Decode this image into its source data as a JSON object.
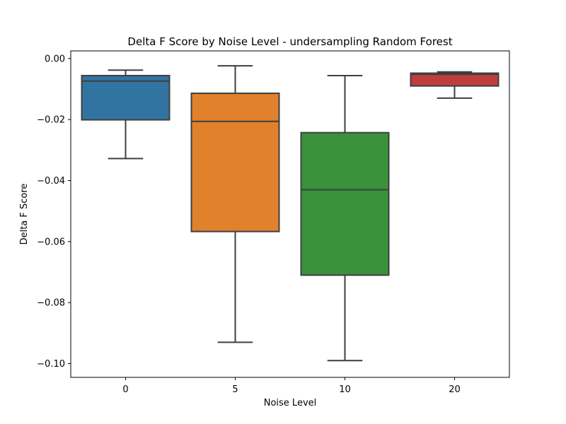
{
  "chart_data": {
    "type": "box",
    "title": "Delta F Score by Noise Level - undersampling Random Forest",
    "xlabel": "Noise Level",
    "ylabel": "Delta F Score",
    "categories": [
      "0",
      "5",
      "10",
      "20"
    ],
    "ylim": [
      -0.1045,
      0.0025
    ],
    "yticks": [
      0.0,
      -0.02,
      -0.04,
      -0.06,
      -0.08,
      -0.1
    ],
    "ytick_labels": [
      "0.00",
      "−0.02",
      "−0.04",
      "−0.06",
      "−0.08",
      "−0.10"
    ],
    "grid": false,
    "boxes": [
      {
        "category": "0",
        "color": "#3274a1",
        "whisker_low": -0.0328,
        "q1": -0.0201,
        "median": -0.0074,
        "q3": -0.0056,
        "whisker_high": -0.0038
      },
      {
        "category": "5",
        "color": "#e1812c",
        "whisker_low": -0.093,
        "q1": -0.0567,
        "median": -0.0206,
        "q3": -0.0114,
        "whisker_high": -0.0024
      },
      {
        "category": "10",
        "color": "#3a923a",
        "whisker_low": -0.099,
        "q1": -0.071,
        "median": -0.043,
        "q3": -0.0243,
        "whisker_high": -0.0056
      },
      {
        "category": "20",
        "color": "#c03d3e",
        "whisker_low": -0.013,
        "q1": -0.009,
        "median": -0.0052,
        "q3": -0.0048,
        "whisker_high": -0.0044
      }
    ]
  }
}
